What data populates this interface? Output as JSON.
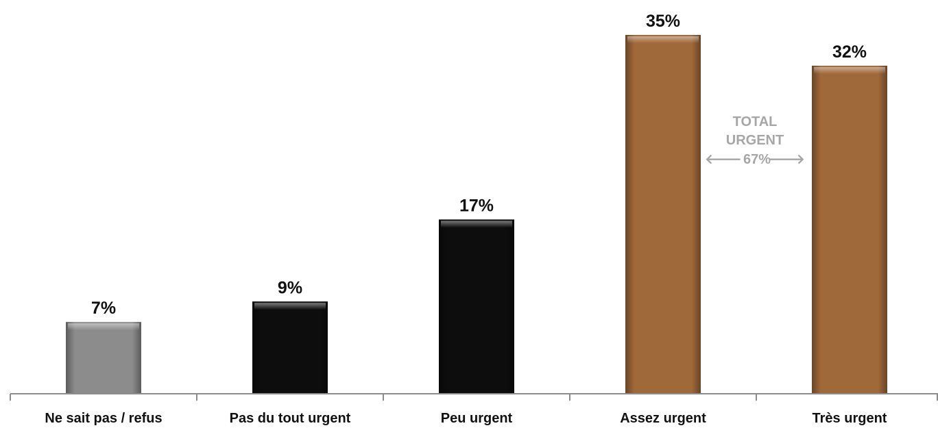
{
  "chart_data": {
    "type": "bar",
    "categories": [
      "Ne sait pas / refus",
      "Pas du tout urgent",
      "Peu urgent",
      "Assez urgent",
      "Très urgent"
    ],
    "values": [
      7,
      9,
      17,
      35,
      32
    ],
    "value_labels": [
      "7%",
      "9%",
      "17%",
      "35%",
      "32%"
    ],
    "bar_colors": [
      "#8c8c8c",
      "#0d0d0d",
      "#0d0d0d",
      "#a0693a",
      "#a0693a"
    ],
    "ylim": [
      0,
      35
    ],
    "grid": false,
    "annotation": {
      "line1": "TOTAL",
      "line2": "URGENT",
      "line3": "67%",
      "left_arrow": "🡐",
      "right_arrow": "🡒",
      "color": "#a6a6a6"
    },
    "axis_color": "#8c8c8c"
  }
}
